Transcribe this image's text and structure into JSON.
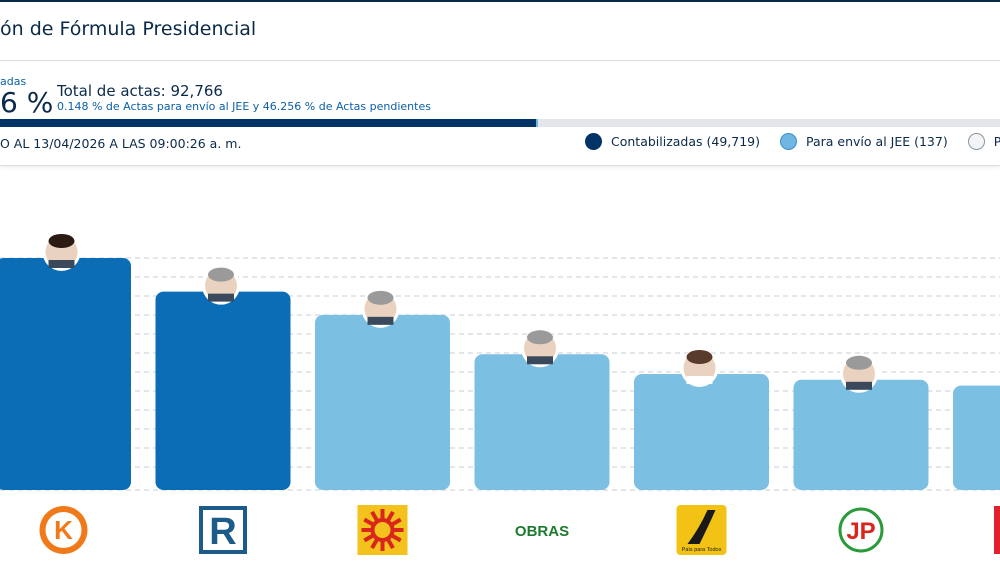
{
  "header": {
    "title": "ón de Fórmula Presidencial"
  },
  "summary": {
    "pct_label": "adas",
    "pct_value": "6 %",
    "total_label": "Total de actas: 92,766",
    "sub_label": "0.148 % de Actas para envío al JEE y 46.256 % de Actas pendientes",
    "contabilizadas_fraction": 0.536,
    "jee_fraction": 0.00148,
    "update_text": "O AL 13/04/2026 A LAS 09:00:26 a. m."
  },
  "legend": {
    "items": [
      {
        "label": "Contabilizadas (49,719)",
        "kind": "dark"
      },
      {
        "label": "Para envío al JEE (137)",
        "kind": "light"
      },
      {
        "label": "Pe",
        "kind": "empty"
      }
    ]
  },
  "colors": {
    "leader_bar": "#0a6db5",
    "other_bar": "#7bbfe3",
    "navy": "#003366",
    "grid": "#c9ced6"
  },
  "chart_data": {
    "type": "bar",
    "title": "",
    "xlabel": "",
    "ylabel": "",
    "categories": [
      "K",
      "R",
      "sun",
      "OBRAS",
      "road",
      "JP",
      "red"
    ],
    "series": [
      {
        "values": [
          100,
          85.5,
          75.5,
          58.5,
          50,
          47.5,
          45
        ]
      }
    ],
    "ylim": [
      0,
      100
    ],
    "grid": true,
    "highlight": [
      0,
      1
    ],
    "party_icons": [
      "k-circle-icon",
      "r-square-icon",
      "sun-face-icon",
      "obras-text-icon",
      "road-icon",
      "jp-icon",
      "red-bar-icon"
    ],
    "logo_texts": [
      "K",
      "R",
      "",
      "OBRAS",
      "País para Todos",
      "JP",
      ""
    ]
  }
}
